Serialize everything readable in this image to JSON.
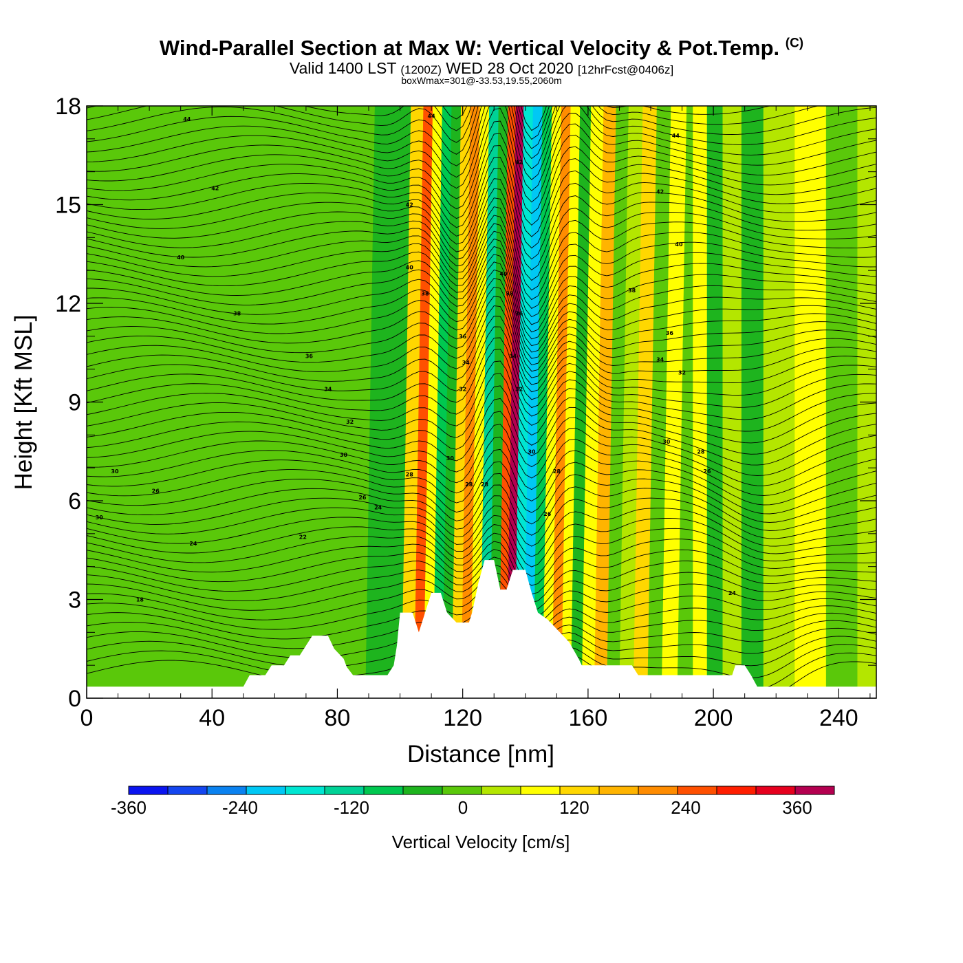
{
  "title": "Wind-Parallel Section at Max W: Vertical Velocity & Pot.Temp.",
  "title_mark": "(C)",
  "subtitle_main": "Valid 1400 LST",
  "subtitle_z": "(1200Z)",
  "subtitle_date": "WED 28 Oct 2020",
  "subtitle_fcst": "[12hrFcst@0406z]",
  "box_wmax": "boxWmax=301@-33.53,19.55,2060m",
  "chart_data": {
    "type": "heatmap",
    "xlabel": "Distance [nm]",
    "ylabel": "Height [Kft MSL]",
    "xlim": [
      0,
      252
    ],
    "ylim": [
      0,
      18
    ],
    "x_ticks": [
      0,
      40,
      80,
      120,
      160,
      200,
      240
    ],
    "x_tick_labels": [
      "0",
      "40",
      "80",
      "120",
      "160",
      "200",
      "240"
    ],
    "y_ticks": [
      0,
      3,
      6,
      9,
      12,
      15,
      18
    ],
    "y_tick_labels": [
      "0",
      "3",
      "6",
      "9",
      "12",
      "15",
      "18"
    ],
    "colorbar": {
      "label": "Vertical Velocity [cm/s]",
      "min": -360,
      "max": 400,
      "step": 40,
      "tick_values": [
        -360,
        -240,
        -120,
        0,
        120,
        240,
        360
      ],
      "tick_labels": [
        "-360",
        "-240",
        "-120",
        "0",
        "120",
        "240",
        "360"
      ],
      "colors": [
        "#0a14f0",
        "#1446f0",
        "#0a82f0",
        "#00c8f5",
        "#00e6d2",
        "#00d296",
        "#00c850",
        "#1eb41e",
        "#5ac80a",
        "#b4e600",
        "#ffff00",
        "#ffd700",
        "#ffb400",
        "#ff8c00",
        "#ff5000",
        "#ff1e00",
        "#e6001e",
        "#b40050"
      ]
    },
    "velocity_bands": [
      {
        "x": 0,
        "w": -30
      },
      {
        "x": 50,
        "w": -15
      },
      {
        "x": 80,
        "w": -10
      },
      {
        "x": 98,
        "w": -60
      },
      {
        "x": 103,
        "w": 80
      },
      {
        "x": 106,
        "w": 200
      },
      {
        "x": 109,
        "w": 60
      },
      {
        "x": 112,
        "w": -110
      },
      {
        "x": 115,
        "w": -70
      },
      {
        "x": 118,
        "w": 80
      },
      {
        "x": 121,
        "w": 190
      },
      {
        "x": 124,
        "w": 60
      },
      {
        "x": 127,
        "w": -130
      },
      {
        "x": 130,
        "w": -70
      },
      {
        "x": 133,
        "w": 200
      },
      {
        "x": 135,
        "w": 340
      },
      {
        "x": 138,
        "w": -170
      },
      {
        "x": 141,
        "w": -230
      },
      {
        "x": 144,
        "w": -90
      },
      {
        "x": 147,
        "w": 70
      },
      {
        "x": 150,
        "w": 160
      },
      {
        "x": 153,
        "w": 50
      },
      {
        "x": 156,
        "w": -80
      },
      {
        "x": 160,
        "w": 60
      },
      {
        "x": 164,
        "w": 130
      },
      {
        "x": 168,
        "w": -40
      },
      {
        "x": 172,
        "w": 10
      },
      {
        "x": 177,
        "w": 80
      },
      {
        "x": 181,
        "w": -30
      },
      {
        "x": 186,
        "w": 60
      },
      {
        "x": 191,
        "w": -40
      },
      {
        "x": 196,
        "w": 40
      },
      {
        "x": 200,
        "w": -60
      },
      {
        "x": 206,
        "w": 30
      },
      {
        "x": 212,
        "w": -70
      },
      {
        "x": 220,
        "w": 20
      },
      {
        "x": 232,
        "w": 60
      },
      {
        "x": 240,
        "w": -40
      },
      {
        "x": 252,
        "w": 10
      }
    ],
    "theta_labels": [
      {
        "x": 32,
        "y": 17.6,
        "text": "44"
      },
      {
        "x": 41,
        "y": 15.5,
        "text": "42"
      },
      {
        "x": 30,
        "y": 13.4,
        "text": "40"
      },
      {
        "x": 48,
        "y": 11.7,
        "text": "38"
      },
      {
        "x": 71,
        "y": 10.4,
        "text": "36"
      },
      {
        "x": 77,
        "y": 9.4,
        "text": "34"
      },
      {
        "x": 84,
        "y": 8.4,
        "text": "32"
      },
      {
        "x": 82,
        "y": 7.4,
        "text": "30"
      },
      {
        "x": 9,
        "y": 6.9,
        "text": "30"
      },
      {
        "x": 22,
        "y": 6.3,
        "text": "26"
      },
      {
        "x": 88,
        "y": 6.1,
        "text": "26"
      },
      {
        "x": 93,
        "y": 5.8,
        "text": "24"
      },
      {
        "x": 4,
        "y": 5.5,
        "text": "30"
      },
      {
        "x": 34,
        "y": 4.7,
        "text": "24"
      },
      {
        "x": 69,
        "y": 4.9,
        "text": "22"
      },
      {
        "x": 17,
        "y": 3.0,
        "text": "18"
      },
      {
        "x": 110,
        "y": 17.7,
        "text": "44"
      },
      {
        "x": 103,
        "y": 15.0,
        "text": "42"
      },
      {
        "x": 103,
        "y": 13.1,
        "text": "40"
      },
      {
        "x": 108,
        "y": 12.3,
        "text": "38"
      },
      {
        "x": 120,
        "y": 11.0,
        "text": "36"
      },
      {
        "x": 121,
        "y": 10.2,
        "text": "34"
      },
      {
        "x": 120,
        "y": 9.4,
        "text": "32"
      },
      {
        "x": 116,
        "y": 7.3,
        "text": "30"
      },
      {
        "x": 103,
        "y": 6.8,
        "text": "28"
      },
      {
        "x": 122,
        "y": 6.5,
        "text": "28"
      },
      {
        "x": 127,
        "y": 6.5,
        "text": "28"
      },
      {
        "x": 138,
        "y": 16.3,
        "text": "42"
      },
      {
        "x": 133,
        "y": 12.9,
        "text": "40"
      },
      {
        "x": 135,
        "y": 12.3,
        "text": "38"
      },
      {
        "x": 138,
        "y": 11.7,
        "text": "36"
      },
      {
        "x": 136,
        "y": 10.4,
        "text": "34"
      },
      {
        "x": 138,
        "y": 9.4,
        "text": "32"
      },
      {
        "x": 142,
        "y": 7.5,
        "text": "30"
      },
      {
        "x": 150,
        "y": 6.9,
        "text": "28"
      },
      {
        "x": 147,
        "y": 5.6,
        "text": "26"
      },
      {
        "x": 188,
        "y": 17.1,
        "text": "44"
      },
      {
        "x": 183,
        "y": 15.4,
        "text": "42"
      },
      {
        "x": 189,
        "y": 13.8,
        "text": "40"
      },
      {
        "x": 174,
        "y": 12.4,
        "text": "38"
      },
      {
        "x": 186,
        "y": 11.1,
        "text": "36"
      },
      {
        "x": 183,
        "y": 10.3,
        "text": "34"
      },
      {
        "x": 190,
        "y": 9.9,
        "text": "32"
      },
      {
        "x": 185,
        "y": 7.8,
        "text": "30"
      },
      {
        "x": 196,
        "y": 7.5,
        "text": "28"
      },
      {
        "x": 198,
        "y": 6.9,
        "text": "26"
      },
      {
        "x": 206,
        "y": 3.2,
        "text": "24"
      }
    ]
  }
}
